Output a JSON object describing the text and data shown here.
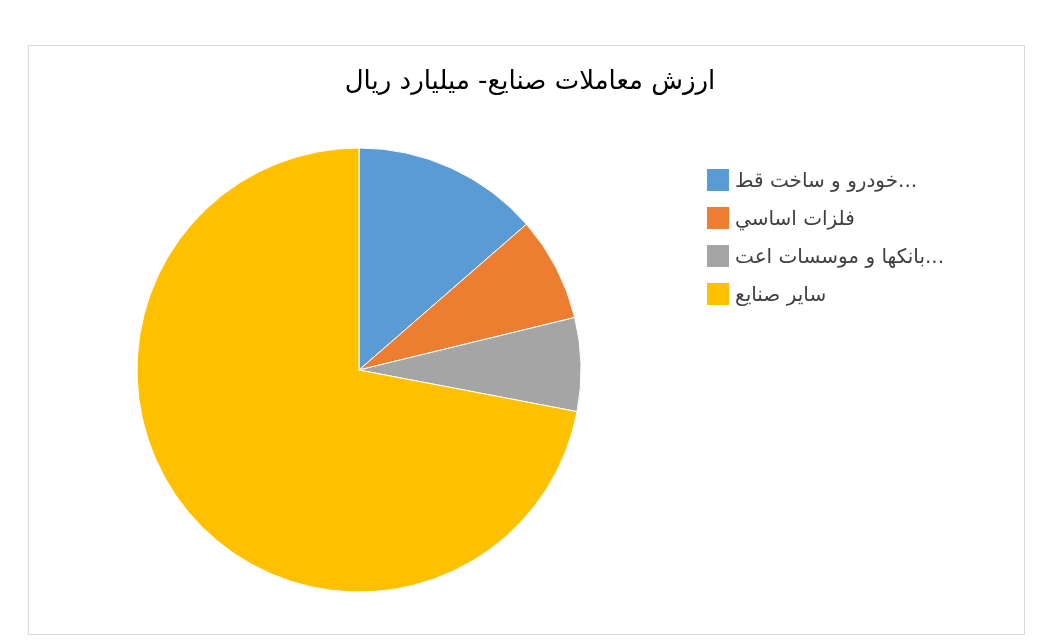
{
  "chart_data": {
    "type": "pie",
    "title": "ارزش معاملات صنایع- میلیارد ریال",
    "categories": [
      "خودرو و ساخت قط...",
      "فلزات اساسي",
      "بانکها و موسسات اعت...",
      "سایر صنایع"
    ],
    "values": [
      13.6,
      7.6,
      6.8,
      72.0
    ],
    "colors": [
      "#5b9bd5",
      "#ed7d31",
      "#a5a5a5",
      "#ffc000"
    ],
    "legend": "right"
  }
}
